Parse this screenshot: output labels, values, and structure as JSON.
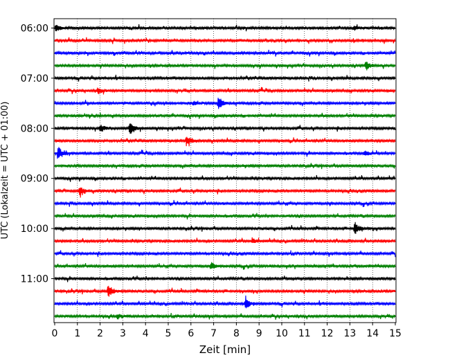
{
  "chart_data": {
    "type": "line",
    "title": "",
    "xlabel": "Zeit  [min]",
    "ylabel": "UTC (Lokalzeit = UTC + 01:00)",
    "xlim": [
      0,
      15
    ],
    "x_ticks": [
      "0",
      "1",
      "2",
      "3",
      "4",
      "5",
      "6",
      "7",
      "8",
      "9",
      "10",
      "11",
      "12",
      "13",
      "14",
      "15"
    ],
    "y_ticks": [
      "06:00",
      "07:00",
      "08:00",
      "09:00",
      "10:00",
      "11:00"
    ],
    "grid": "vertical dotted at each minute",
    "trace_interval_minutes": 15,
    "trace_start": "06:00",
    "trace_count": 24,
    "trace_colors": [
      "#000000",
      "#ff0000",
      "#0000ff",
      "#008000"
    ],
    "events": [
      {
        "trace": 0,
        "minute": 0.05,
        "amp": 0.5
      },
      {
        "trace": 0,
        "minute": 13.2,
        "amp": 0.3
      },
      {
        "trace": 3,
        "minute": 13.7,
        "amp": 0.6
      },
      {
        "trace": 5,
        "minute": 1.9,
        "amp": 0.5
      },
      {
        "trace": 6,
        "minute": 7.2,
        "amp": 1.0
      },
      {
        "trace": 6,
        "minute": 6.1,
        "amp": 0.3
      },
      {
        "trace": 8,
        "minute": 2.0,
        "amp": 0.6
      },
      {
        "trace": 8,
        "minute": 3.3,
        "amp": 1.0
      },
      {
        "trace": 9,
        "minute": 5.8,
        "amp": 0.7
      },
      {
        "trace": 10,
        "minute": 0.15,
        "amp": 1.0
      },
      {
        "trace": 10,
        "minute": 13.65,
        "amp": 0.4
      },
      {
        "trace": 13,
        "minute": 1.1,
        "amp": 0.8
      },
      {
        "trace": 16,
        "minute": 13.2,
        "amp": 1.0
      },
      {
        "trace": 17,
        "minute": 8.7,
        "amp": 0.4
      },
      {
        "trace": 19,
        "minute": 6.9,
        "amp": 0.5
      },
      {
        "trace": 21,
        "minute": 2.35,
        "amp": 1.0
      },
      {
        "trace": 22,
        "minute": 8.4,
        "amp": 0.8
      },
      {
        "trace": 23,
        "minute": 2.75,
        "amp": 0.3
      }
    ]
  }
}
